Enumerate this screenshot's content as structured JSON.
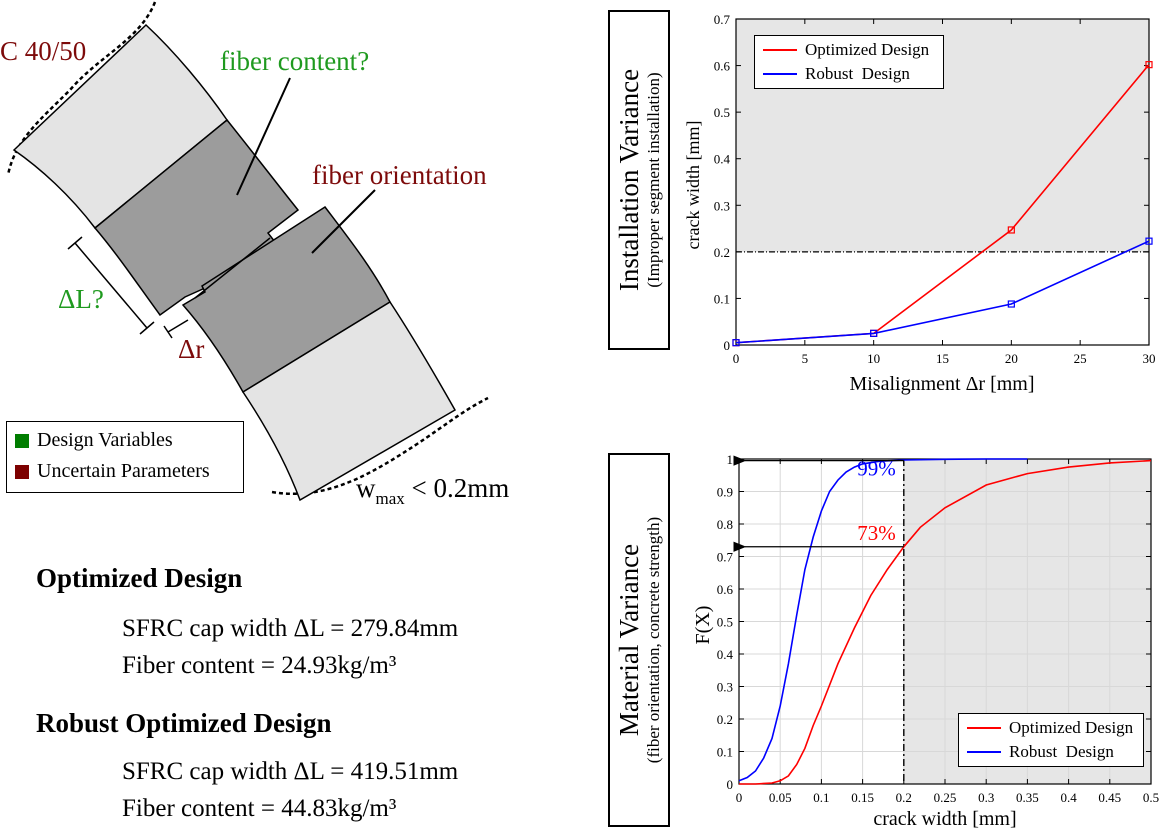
{
  "diagram": {
    "concrete_label": "C 40/50",
    "fiber_content_label": "fiber content?",
    "fiber_orientation_label": "fiber orientation",
    "delta_l_label": "ΔL?",
    "delta_r_label": "Δr",
    "wmax_label_main": "w",
    "wmax_label_sub": "max",
    "wmax_label_rest": " < 0.2mm",
    "legend": [
      {
        "label": "Design Variables",
        "color": "#007d00"
      },
      {
        "label": "Uncertain Parameters",
        "color": "#7d0000"
      }
    ],
    "colors": {
      "green": "#1f9a1f",
      "darkred": "#7d0a0a",
      "light": "#e4e4e4",
      "dark": "#9c9c9c"
    }
  },
  "designs": [
    {
      "title": "Optimized Design",
      "lines": [
        "SFRC cap width ΔL = 279.84mm",
        "Fiber content = 24.93kg/m³"
      ]
    },
    {
      "title": "Robust Optimized Design",
      "lines": [
        "SFRC cap width ΔL = 419.51mm",
        "Fiber content = 44.83kg/m³"
      ]
    }
  ],
  "chart_data": [
    {
      "type": "line",
      "side_label_main": "Installation Variance",
      "side_label_sub": "(Improper segment installation)",
      "xlabel": "Misalignment Δr [mm]",
      "ylabel": "crack width [mm]",
      "xlim": [
        0,
        30
      ],
      "ylim": [
        0,
        0.7
      ],
      "xticks": [
        "0",
        "5",
        "10",
        "15",
        "20",
        "25",
        "30"
      ],
      "yticks": [
        "0",
        "0.1",
        "0.2",
        "0.3",
        "0.4",
        "0.5",
        "0.6",
        "0.7"
      ],
      "threshold_y": 0.2,
      "shaded_region": "y > 0.2",
      "grid": false,
      "legend_position": "top-left",
      "series": [
        {
          "name": "Optimized Design",
          "color": "#ff0000",
          "x": [
            0,
            10,
            20,
            30
          ],
          "y": [
            0.005,
            0.025,
            0.247,
            0.602
          ]
        },
        {
          "name": "Robust  Design",
          "color": "#0000ff",
          "x": [
            0,
            10,
            20,
            30
          ],
          "y": [
            0.005,
            0.025,
            0.088,
            0.223
          ]
        }
      ]
    },
    {
      "type": "line",
      "side_label_main": "Material Variance",
      "side_label_sub": "(fiber orientation, concrete strength)",
      "xlabel": "crack width [mm]",
      "ylabel": "F(X)",
      "xlim": [
        0,
        0.5
      ],
      "ylim": [
        0,
        1
      ],
      "xticks": [
        "0",
        "0.05",
        "0.1",
        "0.15",
        "0.2",
        "0.25",
        "0.3",
        "0.35",
        "0.4",
        "0.45",
        "0.5"
      ],
      "yticks": [
        "0",
        "0.1",
        "0.2",
        "0.3",
        "0.4",
        "0.5",
        "0.6",
        "0.7",
        "0.8",
        "0.9",
        "1"
      ],
      "threshold_x": 0.2,
      "shaded_region": "x > 0.2",
      "grid": true,
      "legend_position": "bottom-right",
      "annotations": [
        {
          "text": "99%",
          "color": "#0000ff",
          "x": 0.2,
          "y": 0.995
        },
        {
          "text": "73%",
          "color": "#ff0000",
          "x": 0.2,
          "y": 0.73
        }
      ],
      "series": [
        {
          "name": "Optimized Design",
          "color": "#ff0000",
          "x": [
            0,
            0.02,
            0.04,
            0.05,
            0.06,
            0.07,
            0.08,
            0.09,
            0.1,
            0.12,
            0.14,
            0.16,
            0.18,
            0.2,
            0.22,
            0.25,
            0.3,
            0.35,
            0.4,
            0.45,
            0.5
          ],
          "y": [
            0,
            0,
            0.003,
            0.01,
            0.025,
            0.06,
            0.11,
            0.18,
            0.24,
            0.37,
            0.48,
            0.58,
            0.66,
            0.73,
            0.79,
            0.85,
            0.92,
            0.955,
            0.975,
            0.988,
            0.995
          ]
        },
        {
          "name": "Robust  Design",
          "color": "#0000ff",
          "x": [
            0,
            0.01,
            0.02,
            0.03,
            0.04,
            0.05,
            0.06,
            0.07,
            0.08,
            0.09,
            0.1,
            0.11,
            0.12,
            0.13,
            0.14,
            0.15,
            0.17,
            0.2,
            0.25,
            0.3,
            0.35
          ],
          "y": [
            0.01,
            0.02,
            0.04,
            0.08,
            0.14,
            0.24,
            0.37,
            0.52,
            0.66,
            0.76,
            0.84,
            0.9,
            0.935,
            0.96,
            0.975,
            0.985,
            0.993,
            0.997,
            0.999,
            1.0,
            1.0
          ]
        }
      ]
    }
  ]
}
